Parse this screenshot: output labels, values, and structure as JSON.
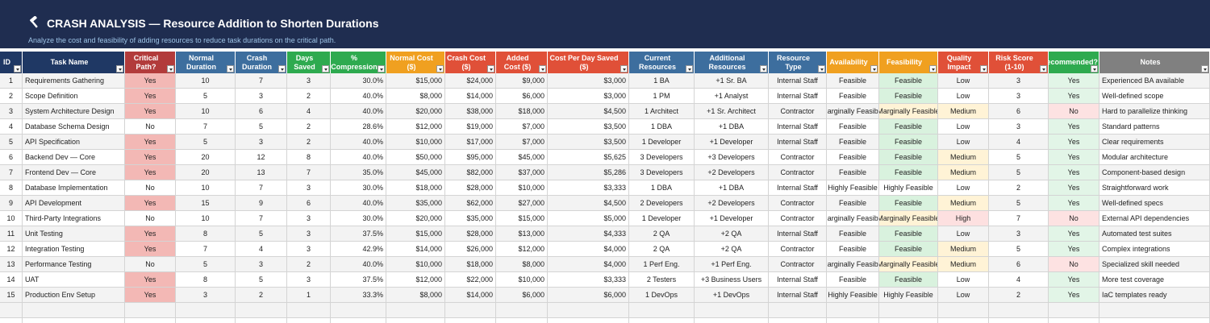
{
  "header": {
    "title": "CRASH ANALYSIS — Resource Addition to Shorten Durations",
    "subtitle": "Analyze the cost and feasibility of adding resources to reduce task durations on the critical path."
  },
  "table": {
    "columns": [
      "ID",
      "Task Name",
      "Critical Path?",
      "Normal Duration",
      "Crash Duration",
      "Days Saved",
      "% Compression",
      "Normal Cost ($)",
      "Crash Cost ($)",
      "Added Cost ($)",
      "Cost Per Day Saved ($)",
      "Current Resources",
      "Additional Resources",
      "Resource Type",
      "Availability",
      "Feasibility",
      "Quality Impact",
      "Risk Score (1-10)",
      "Recommended?",
      "Notes"
    ],
    "rows": [
      [
        1,
        "Requirements Gathering",
        "Yes",
        10,
        7,
        3,
        "30.0%",
        "$15,000",
        "$24,000",
        "$9,000",
        "$3,000",
        "1 BA",
        "+1 Sr. BA",
        "Internal Staff",
        "Feasible",
        "Feasible",
        "Low",
        3,
        "Yes",
        "Experienced BA available"
      ],
      [
        2,
        "Scope Definition",
        "Yes",
        5,
        3,
        2,
        "40.0%",
        "$8,000",
        "$14,000",
        "$6,000",
        "$3,000",
        "1 PM",
        "+1 Analyst",
        "Internal Staff",
        "Feasible",
        "Feasible",
        "Low",
        3,
        "Yes",
        "Well-defined scope"
      ],
      [
        3,
        "System Architecture Design",
        "Yes",
        10,
        6,
        4,
        "40.0%",
        "$20,000",
        "$38,000",
        "$18,000",
        "$4,500",
        "1 Architect",
        "+1 Sr. Architect",
        "Contractor",
        "Marginally Feasible",
        "Marginally Feasible",
        "Medium",
        6,
        "No",
        "Hard to parallelize thinking"
      ],
      [
        4,
        "Database Schema Design",
        "No",
        7,
        5,
        2,
        "28.6%",
        "$12,000",
        "$19,000",
        "$7,000",
        "$3,500",
        "1 DBA",
        "+1 DBA",
        "Internal Staff",
        "Feasible",
        "Feasible",
        "Low",
        3,
        "Yes",
        "Standard patterns"
      ],
      [
        5,
        "API Specification",
        "Yes",
        5,
        3,
        2,
        "40.0%",
        "$10,000",
        "$17,000",
        "$7,000",
        "$3,500",
        "1 Developer",
        "+1 Developer",
        "Internal Staff",
        "Feasible",
        "Feasible",
        "Low",
        4,
        "Yes",
        "Clear requirements"
      ],
      [
        6,
        "Backend Dev — Core",
        "Yes",
        20,
        12,
        8,
        "40.0%",
        "$50,000",
        "$95,000",
        "$45,000",
        "$5,625",
        "3 Developers",
        "+3 Developers",
        "Contractor",
        "Feasible",
        "Feasible",
        "Medium",
        5,
        "Yes",
        "Modular architecture"
      ],
      [
        7,
        "Frontend Dev — Core",
        "Yes",
        20,
        13,
        7,
        "35.0%",
        "$45,000",
        "$82,000",
        "$37,000",
        "$5,286",
        "3 Developers",
        "+2 Developers",
        "Contractor",
        "Feasible",
        "Feasible",
        "Medium",
        5,
        "Yes",
        "Component-based design"
      ],
      [
        8,
        "Database Implementation",
        "No",
        10,
        7,
        3,
        "30.0%",
        "$18,000",
        "$28,000",
        "$10,000",
        "$3,333",
        "1 DBA",
        "+1 DBA",
        "Internal Staff",
        "Highly Feasible",
        "Highly Feasible",
        "Low",
        2,
        "Yes",
        "Straightforward work"
      ],
      [
        9,
        "API Development",
        "Yes",
        15,
        9,
        6,
        "40.0%",
        "$35,000",
        "$62,000",
        "$27,000",
        "$4,500",
        "2 Developers",
        "+2 Developers",
        "Contractor",
        "Feasible",
        "Feasible",
        "Medium",
        5,
        "Yes",
        "Well-defined specs"
      ],
      [
        10,
        "Third-Party Integrations",
        "No",
        10,
        7,
        3,
        "30.0%",
        "$20,000",
        "$35,000",
        "$15,000",
        "$5,000",
        "1 Developer",
        "+1 Developer",
        "Contractor",
        "Marginally Feasible",
        "Marginally Feasible",
        "High",
        7,
        "No",
        "External API dependencies"
      ],
      [
        11,
        "Unit Testing",
        "Yes",
        8,
        5,
        3,
        "37.5%",
        "$15,000",
        "$28,000",
        "$13,000",
        "$4,333",
        "2 QA",
        "+2 QA",
        "Internal Staff",
        "Feasible",
        "Feasible",
        "Low",
        3,
        "Yes",
        "Automated test suites"
      ],
      [
        12,
        "Integration Testing",
        "Yes",
        7,
        4,
        3,
        "42.9%",
        "$14,000",
        "$26,000",
        "$12,000",
        "$4,000",
        "2 QA",
        "+2 QA",
        "Contractor",
        "Feasible",
        "Feasible",
        "Medium",
        5,
        "Yes",
        "Complex integrations"
      ],
      [
        13,
        "Performance Testing",
        "No",
        5,
        3,
        2,
        "40.0%",
        "$10,000",
        "$18,000",
        "$8,000",
        "$4,000",
        "1 Perf Eng.",
        "+1 Perf Eng.",
        "Contractor",
        "Marginally Feasible",
        "Marginally Feasible",
        "Medium",
        6,
        "No",
        "Specialized skill needed"
      ],
      [
        14,
        "UAT",
        "Yes",
        8,
        5,
        3,
        "37.5%",
        "$12,000",
        "$22,000",
        "$10,000",
        "$3,333",
        "2 Testers",
        "+3 Business Users",
        "Internal Staff",
        "Feasible",
        "Feasible",
        "Low",
        4,
        "Yes",
        "More test coverage"
      ],
      [
        15,
        "Production Env Setup",
        "Yes",
        3,
        2,
        1,
        "33.3%",
        "$8,000",
        "$14,000",
        "$6,000",
        "$6,000",
        "1 DevOps",
        "+1 DevOps",
        "Internal Staff",
        "Highly Feasible",
        "Highly Feasible",
        "Low",
        2,
        "Yes",
        "IaC templates ready"
      ]
    ]
  }
}
